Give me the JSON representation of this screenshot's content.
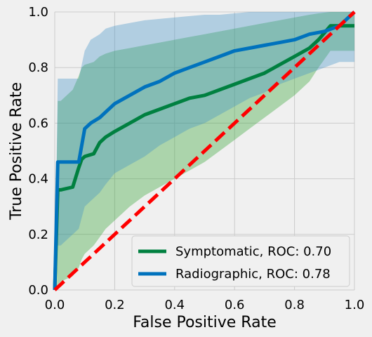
{
  "chart_data": {
    "type": "line",
    "title": "",
    "xlabel": "False Positive Rate",
    "ylabel": "True Positive Rate",
    "xlim": [
      0.0,
      1.0
    ],
    "ylim": [
      0.0,
      1.0
    ],
    "xticks": [
      "0.0",
      "0.2",
      "0.4",
      "0.6",
      "0.8",
      "1.0"
    ],
    "yticks": [
      "0.0",
      "0.2",
      "0.4",
      "0.6",
      "0.8",
      "1.0"
    ],
    "grid": true,
    "legend_position": "bottom-right",
    "diagonal": {
      "x": [
        0,
        1
      ],
      "y": [
        0,
        1
      ],
      "color": "#ff0000",
      "style": "dashed"
    },
    "series": [
      {
        "name": "Symptomatic, ROC: 0.70",
        "color": "#008040",
        "band_color": "#2ca02c",
        "x": [
          0.0,
          0.01,
          0.02,
          0.06,
          0.08,
          0.09,
          0.1,
          0.13,
          0.15,
          0.17,
          0.2,
          0.25,
          0.3,
          0.35,
          0.4,
          0.45,
          0.5,
          0.55,
          0.6,
          0.65,
          0.7,
          0.75,
          0.8,
          0.85,
          0.88,
          0.92,
          1.0
        ],
        "y": [
          0.0,
          0.36,
          0.36,
          0.37,
          0.44,
          0.47,
          0.48,
          0.49,
          0.53,
          0.55,
          0.57,
          0.6,
          0.63,
          0.65,
          0.67,
          0.69,
          0.7,
          0.72,
          0.74,
          0.76,
          0.78,
          0.81,
          0.84,
          0.87,
          0.9,
          0.95,
          0.95
        ],
        "upper": [
          0.0,
          0.68,
          0.68,
          0.72,
          0.77,
          0.8,
          0.81,
          0.82,
          0.84,
          0.85,
          0.86,
          0.87,
          0.88,
          0.89,
          0.9,
          0.91,
          0.92,
          0.93,
          0.94,
          0.95,
          0.96,
          0.97,
          0.98,
          0.99,
          0.995,
          1.0,
          1.0
        ],
        "lower": [
          0.0,
          0.02,
          0.03,
          0.05,
          0.08,
          0.11,
          0.13,
          0.16,
          0.19,
          0.22,
          0.25,
          0.3,
          0.34,
          0.37,
          0.4,
          0.43,
          0.46,
          0.5,
          0.54,
          0.58,
          0.62,
          0.66,
          0.7,
          0.75,
          0.8,
          0.86,
          0.86
        ]
      },
      {
        "name": "Radiographic, ROC: 0.78",
        "color": "#0072bd",
        "band_color": "#3d8ec7",
        "x": [
          0.0,
          0.01,
          0.02,
          0.08,
          0.1,
          0.12,
          0.15,
          0.17,
          0.2,
          0.25,
          0.3,
          0.35,
          0.4,
          0.45,
          0.5,
          0.55,
          0.6,
          0.65,
          0.7,
          0.75,
          0.8,
          0.85,
          0.9,
          0.95,
          1.0
        ],
        "y": [
          0.0,
          0.46,
          0.46,
          0.46,
          0.58,
          0.6,
          0.62,
          0.64,
          0.67,
          0.7,
          0.73,
          0.75,
          0.78,
          0.8,
          0.82,
          0.84,
          0.86,
          0.87,
          0.88,
          0.89,
          0.9,
          0.92,
          0.93,
          0.95,
          1.0
        ],
        "upper": [
          0.0,
          0.76,
          0.76,
          0.76,
          0.86,
          0.9,
          0.92,
          0.94,
          0.95,
          0.96,
          0.97,
          0.975,
          0.98,
          0.985,
          0.99,
          0.99,
          0.995,
          1.0,
          1.0,
          1.0,
          1.0,
          1.0,
          1.0,
          1.0,
          1.0
        ],
        "lower": [
          0.0,
          0.16,
          0.16,
          0.22,
          0.3,
          0.32,
          0.35,
          0.38,
          0.42,
          0.45,
          0.48,
          0.52,
          0.55,
          0.58,
          0.6,
          0.63,
          0.66,
          0.69,
          0.71,
          0.74,
          0.76,
          0.78,
          0.8,
          0.82,
          0.82
        ]
      }
    ]
  }
}
